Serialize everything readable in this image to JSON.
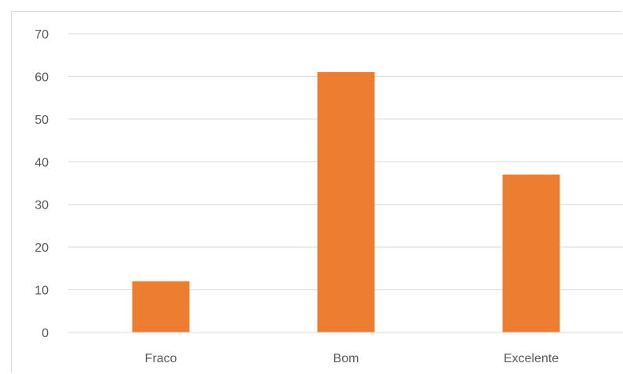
{
  "chart_data": {
    "type": "bar",
    "categories": [
      "Fraco",
      "Bom",
      "Excelente"
    ],
    "series": [
      {
        "values": [
          12,
          61,
          37
        ]
      }
    ],
    "title": "",
    "xlabel": "",
    "ylabel": "",
    "ylim": [
      0,
      70
    ],
    "yticks": [
      0,
      10,
      20,
      30,
      40,
      50,
      60,
      70
    ],
    "grid": true,
    "legend": "none",
    "colors": {
      "bar": "#ED7D31",
      "grid": "#D9D9D9",
      "text": "#595959"
    }
  }
}
